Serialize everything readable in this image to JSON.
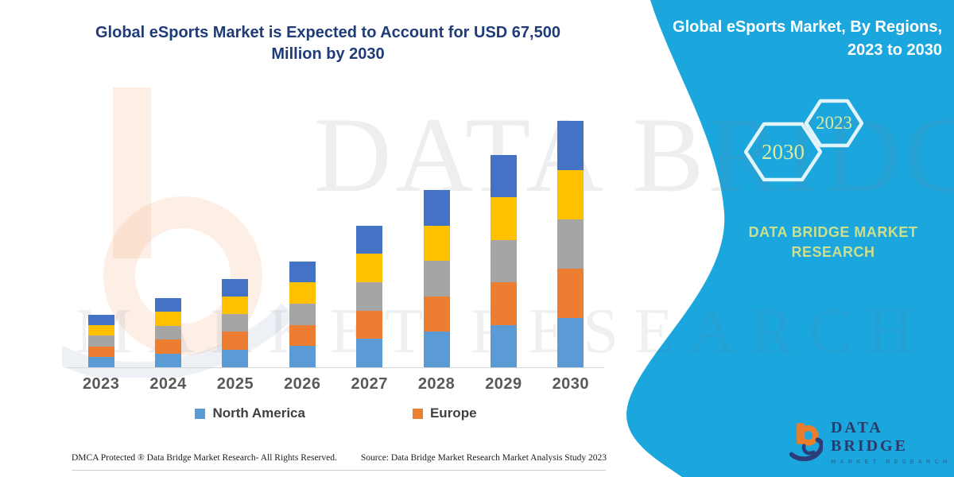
{
  "main_title": {
    "line1": "Global eSports Market is Expected to Account for USD 67,500",
    "line2": "Million by 2030",
    "color": "#1f3c78"
  },
  "chart_data": {
    "type": "bar",
    "stacked": true,
    "title": "Global eSports Market is Expected to Account for USD 67,500 Million by 2030",
    "unit": "USD Million",
    "categories": [
      "2023",
      "2024",
      "2025",
      "2026",
      "2027",
      "2028",
      "2029",
      "2030"
    ],
    "series": [
      {
        "name": "North America",
        "color": "#5B9BD5",
        "values": [
          2880,
          3800,
          4840,
          5800,
          7760,
          9700,
          11620,
          13500
        ]
      },
      {
        "name": "Europe",
        "color": "#ED7D31",
        "values": [
          2880,
          3800,
          4840,
          5800,
          7760,
          9700,
          11620,
          13500
        ]
      },
      {
        "name": "",
        "color": "#A5A5A5",
        "values": [
          2880,
          3800,
          4840,
          5800,
          7760,
          9700,
          11620,
          13500
        ]
      },
      {
        "name": "",
        "color": "#FFC000",
        "values": [
          2880,
          3800,
          4840,
          5800,
          7760,
          9700,
          11620,
          13500
        ]
      },
      {
        "name": "",
        "color": "#4472C4",
        "values": [
          2880,
          3800,
          4840,
          5800,
          7760,
          9700,
          11620,
          13500
        ]
      }
    ],
    "totals": [
      14400,
      19000,
      24200,
      29000,
      38800,
      48500,
      58100,
      67500
    ],
    "ylim": [
      0,
      70000
    ],
    "grid": false,
    "axis_line_color": "#d6d6d6",
    "xlabel": "",
    "ylabel": "",
    "legend_position": "bottom",
    "legend_visible_entries": [
      "North America",
      "Europe"
    ]
  },
  "legend": {
    "items": [
      {
        "label": "North America",
        "color": "#5B9BD5"
      },
      {
        "label": "Europe",
        "color": "#ED7D31"
      }
    ]
  },
  "right_panel": {
    "background": "#1BA7DE",
    "title_line1": "Global eSports Market, By Regions,",
    "title_line2": "2023 to 2030",
    "hexagons": [
      {
        "label": "2030"
      },
      {
        "label": "2023"
      }
    ],
    "hexagon_text_color": "#dcea9f",
    "hexagon_stroke_color": "#e3f5fc",
    "brand_line1": "DATA BRIDGE MARKET",
    "brand_line2": "RESEARCH",
    "brand_text_color": "#cbdf8c"
  },
  "logo": {
    "line1": "DATA BRIDGE",
    "line2": "MARKET RESEARCH",
    "orange": "#E87E2B",
    "navy": "#2B3E79"
  },
  "watermark": {
    "line1": "DATA BRIDGE",
    "line2": "MARKET RESEARCH"
  },
  "footer": {
    "left_text": "DMCA Protected ® Data Bridge Market Research- All Rights Reserved.",
    "source_text": "Source: Data Bridge Market Research  Market Analysis Study 2023"
  }
}
